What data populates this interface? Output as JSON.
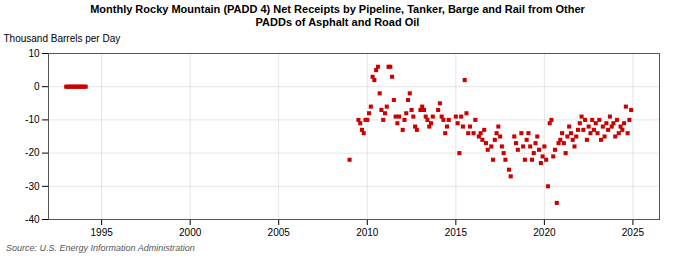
{
  "chart_data": {
    "type": "scatter",
    "title": "Monthly Rocky Mountain (PADD 4) Net Receipts by Pipeline, Tanker, Barge and Rail from Other\nPADDs of Asphalt and Road Oil",
    "ylabel": "Thousand Barrels per Day",
    "source": "Source: U.S. Energy Information Administration",
    "color": "#cc0000",
    "marker": "square",
    "grid": true,
    "xlim": [
      1992.0,
      2026.5
    ],
    "ylim": [
      -40,
      10
    ],
    "xticks": [
      1995,
      2000,
      2005,
      2010,
      2015,
      2020,
      2025
    ],
    "yticks": [
      -40,
      -30,
      -20,
      -10,
      0,
      10
    ],
    "x": [
      1993.0,
      1993.1,
      1993.2,
      1993.3,
      1993.4,
      1993.5,
      1993.6,
      1993.7,
      1993.8,
      1993.9,
      1994.0,
      1994.1,
      2009.0,
      2009.5,
      2009.6,
      2009.7,
      2009.8,
      2009.9,
      2010.0,
      2010.1,
      2010.2,
      2010.3,
      2010.4,
      2010.5,
      2010.6,
      2010.7,
      2010.8,
      2010.9,
      2011.0,
      2011.1,
      2011.2,
      2011.3,
      2011.4,
      2011.5,
      2011.6,
      2011.7,
      2011.8,
      2012.0,
      2012.1,
      2012.2,
      2012.3,
      2012.4,
      2012.5,
      2012.6,
      2012.7,
      2012.8,
      2013.0,
      2013.1,
      2013.2,
      2013.3,
      2013.4,
      2013.5,
      2013.6,
      2013.7,
      2014.0,
      2014.1,
      2014.2,
      2014.3,
      2014.4,
      2014.5,
      2014.6,
      2015.0,
      2015.1,
      2015.2,
      2015.3,
      2015.4,
      2015.5,
      2015.6,
      2015.7,
      2015.8,
      2016.0,
      2016.1,
      2016.3,
      2016.4,
      2016.5,
      2016.6,
      2016.7,
      2016.8,
      2017.0,
      2017.1,
      2017.2,
      2017.3,
      2017.4,
      2017.5,
      2017.6,
      2017.7,
      2017.8,
      2018.0,
      2018.1,
      2018.3,
      2018.4,
      2018.5,
      2018.7,
      2018.8,
      2018.9,
      2019.0,
      2019.1,
      2019.2,
      2019.3,
      2019.4,
      2019.5,
      2019.6,
      2019.7,
      2019.8,
      2019.9,
      2020.0,
      2020.1,
      2020.2,
      2020.3,
      2020.4,
      2020.5,
      2020.6,
      2020.7,
      2020.8,
      2020.9,
      2021.0,
      2021.1,
      2021.2,
      2021.3,
      2021.4,
      2021.5,
      2021.6,
      2021.7,
      2021.8,
      2021.9,
      2022.0,
      2022.1,
      2022.2,
      2022.3,
      2022.4,
      2022.5,
      2022.6,
      2022.7,
      2022.8,
      2022.9,
      2023.0,
      2023.1,
      2023.2,
      2023.3,
      2023.4,
      2023.5,
      2023.6,
      2023.7,
      2023.8,
      2023.9,
      2024.0,
      2024.1,
      2024.2,
      2024.3,
      2024.4,
      2024.5,
      2024.6,
      2024.7,
      2024.8,
      2024.9
    ],
    "values": [
      0.0,
      0.0,
      0.0,
      0.0,
      0.0,
      0.0,
      0.0,
      0.0,
      0.0,
      0.0,
      0.0,
      0.0,
      -22.0,
      -10.0,
      -11.0,
      -13.0,
      -14.0,
      -10.0,
      -10.0,
      -8.0,
      -6.0,
      3.0,
      2.0,
      5.0,
      6.0,
      -2.0,
      -7.0,
      -10.0,
      -8.0,
      -6.0,
      6.0,
      6.0,
      3.0,
      -4.0,
      -9.0,
      -11.0,
      -9.0,
      -13.0,
      -10.0,
      -8.0,
      -4.0,
      -2.0,
      -7.0,
      -9.0,
      -12.0,
      -13.0,
      -7.0,
      -6.0,
      -7.0,
      -9.0,
      -10.0,
      -12.0,
      -11.0,
      -9.0,
      -7.0,
      -5.0,
      -9.0,
      -10.0,
      -14.0,
      -12.0,
      -10.0,
      -9.0,
      -11.0,
      -20.0,
      -9.0,
      -12.0,
      2.0,
      -8.0,
      -14.0,
      -12.0,
      -14.0,
      -10.0,
      -15.0,
      -14.0,
      -16.0,
      -13.0,
      -17.0,
      -19.0,
      -18.0,
      -22.0,
      -16.0,
      -14.0,
      -12.0,
      -15.0,
      -18.0,
      -20.0,
      -22.0,
      -25.0,
      -27.0,
      -15.0,
      -17.0,
      -19.0,
      -14.0,
      -18.0,
      -22.0,
      -16.0,
      -14.0,
      -18.0,
      -22.0,
      -20.0,
      -17.0,
      -15.0,
      -19.0,
      -23.0,
      -21.0,
      -18.0,
      -22.0,
      -30.0,
      -11.0,
      -10.0,
      -21.0,
      -19.0,
      -35.0,
      -17.0,
      -16.0,
      -14.0,
      -17.0,
      -20.0,
      -15.0,
      -12.0,
      -14.0,
      -16.0,
      -18.0,
      -15.0,
      -13.0,
      -11.0,
      -9.0,
      -13.0,
      -10.0,
      -16.0,
      -12.0,
      -14.0,
      -10.0,
      -13.0,
      -11.0,
      -14.0,
      -10.0,
      -16.0,
      -12.0,
      -15.0,
      -11.0,
      -13.0,
      -9.0,
      -12.0,
      -11.0,
      -15.0,
      -10.0,
      -14.0,
      -12.0,
      -13.0,
      -11.0,
      -6.0,
      -14.0,
      -10.0,
      -7.0
    ]
  }
}
